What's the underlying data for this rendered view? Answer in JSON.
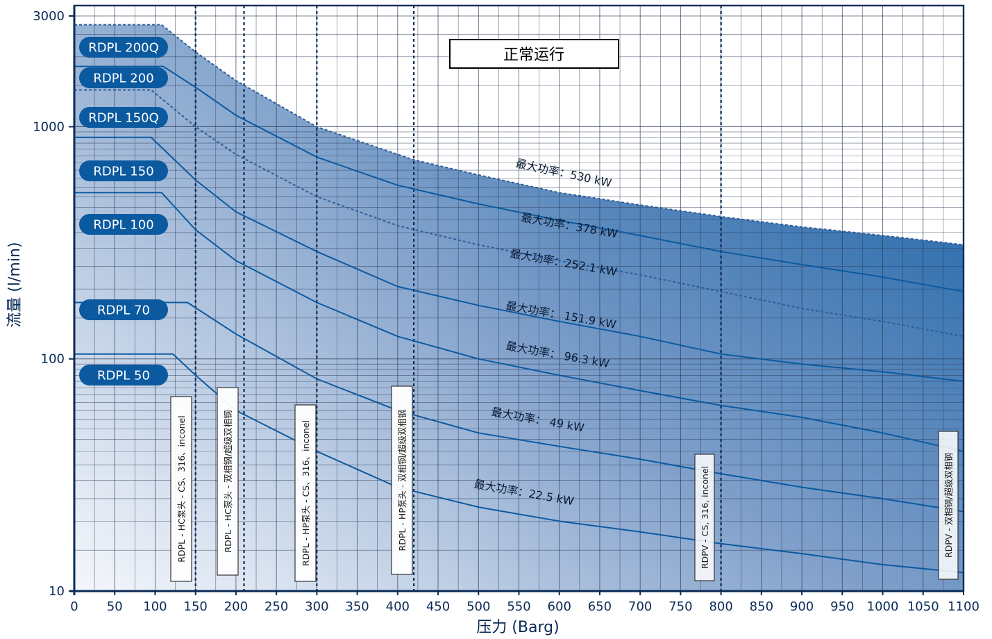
{
  "chart_data": {
    "type": "line",
    "title": "",
    "badge": "正常运行",
    "xlabel": "压力 (Barg)",
    "ylabel": "流量 (l/min)",
    "x_scale": "linear",
    "y_scale": "log",
    "xlim": [
      0,
      1100
    ],
    "ylim": [
      10,
      3000
    ],
    "x_ticks": [
      0,
      50,
      100,
      150,
      200,
      250,
      300,
      350,
      400,
      450,
      500,
      550,
      600,
      650,
      700,
      750,
      800,
      850,
      900,
      950,
      1000,
      1050,
      1100
    ],
    "y_ticks": [
      {
        "value": 10,
        "label": "10"
      },
      {
        "value": 100,
        "label": "100"
      },
      {
        "value": 1000,
        "label": "1000"
      },
      {
        "value": 3000,
        "label": "3000"
      }
    ],
    "grid": true,
    "series": [
      {
        "name": "RDPL 200Q",
        "power_label": "最大功率：530 kW",
        "dashed": true,
        "points": [
          [
            0,
            2750
          ],
          [
            108,
            2750
          ],
          [
            150,
            2100
          ],
          [
            200,
            1580
          ],
          [
            300,
            1000
          ],
          [
            420,
            720
          ],
          [
            500,
            620
          ],
          [
            600,
            520
          ],
          [
            700,
            460
          ],
          [
            800,
            410
          ],
          [
            900,
            370
          ],
          [
            1000,
            340
          ],
          [
            1100,
            310
          ]
        ]
      },
      {
        "name": "RDPL 200",
        "power_label": "最大功率：378 kW",
        "dashed": false,
        "points": [
          [
            0,
            1820
          ],
          [
            110,
            1820
          ],
          [
            150,
            1480
          ],
          [
            200,
            1120
          ],
          [
            300,
            740
          ],
          [
            400,
            560
          ],
          [
            500,
            465
          ],
          [
            600,
            395
          ],
          [
            700,
            340
          ],
          [
            800,
            290
          ],
          [
            900,
            255
          ],
          [
            1000,
            225
          ],
          [
            1100,
            195
          ]
        ]
      },
      {
        "name": "RDPL 150Q",
        "power_label": "最大功率：252.1 kW",
        "dashed": true,
        "points": [
          [
            0,
            1440
          ],
          [
            95,
            1440
          ],
          [
            150,
            1000
          ],
          [
            200,
            760
          ],
          [
            300,
            500
          ],
          [
            400,
            375
          ],
          [
            500,
            310
          ],
          [
            600,
            265
          ],
          [
            700,
            230
          ],
          [
            800,
            195
          ],
          [
            900,
            165
          ],
          [
            1000,
            145
          ],
          [
            1100,
            125
          ]
        ]
      },
      {
        "name": "RDPL 150",
        "power_label": "最大功率： 151.9 kW",
        "dashed": false,
        "points": [
          [
            0,
            900
          ],
          [
            95,
            900
          ],
          [
            150,
            590
          ],
          [
            200,
            430
          ],
          [
            300,
            290
          ],
          [
            400,
            205
          ],
          [
            500,
            170
          ],
          [
            600,
            145
          ],
          [
            700,
            125
          ],
          [
            800,
            105
          ],
          [
            900,
            95
          ],
          [
            1000,
            88
          ],
          [
            1100,
            80
          ]
        ]
      },
      {
        "name": "RDPL 100",
        "power_label": "最大功率： 96.3 kW",
        "dashed": false,
        "points": [
          [
            0,
            520
          ],
          [
            108,
            520
          ],
          [
            150,
            360
          ],
          [
            200,
            265
          ],
          [
            300,
            175
          ],
          [
            400,
            125
          ],
          [
            500,
            100
          ],
          [
            600,
            85
          ],
          [
            700,
            73
          ],
          [
            800,
            63
          ],
          [
            900,
            56
          ],
          [
            1000,
            48
          ],
          [
            1100,
            40
          ]
        ]
      },
      {
        "name": "RDPL 70",
        "power_label": "最大功率：  49 kW",
        "dashed": false,
        "points": [
          [
            0,
            175
          ],
          [
            140,
            175
          ],
          [
            200,
            128
          ],
          [
            300,
            82
          ],
          [
            400,
            60
          ],
          [
            500,
            48
          ],
          [
            600,
            42
          ],
          [
            700,
            37
          ],
          [
            800,
            32
          ],
          [
            900,
            28
          ],
          [
            1000,
            25
          ],
          [
            1100,
            22
          ]
        ]
      },
      {
        "name": "RDPL 50",
        "power_label": "最大功率：22.5 kW",
        "dashed": false,
        "points": [
          [
            0,
            105
          ],
          [
            122,
            105
          ],
          [
            150,
            85
          ],
          [
            200,
            60
          ],
          [
            300,
            40
          ],
          [
            400,
            28
          ],
          [
            500,
            23
          ],
          [
            600,
            20
          ],
          [
            700,
            18
          ],
          [
            800,
            16
          ],
          [
            900,
            14.5
          ],
          [
            1000,
            13
          ],
          [
            1100,
            12
          ]
        ]
      }
    ],
    "vertical_markers": [
      {
        "x": 150,
        "label": "RDPL - HC泵头 - CS、316、inconel"
      },
      {
        "x": 210,
        "label": "RDPL - HC泵头 - 双相钢/超级双相钢"
      },
      {
        "x": 300,
        "label": "RDPL - HP泵头 - CS、316、inconel"
      },
      {
        "x": 420,
        "label": "RDPL - HP泵头 - 双相钢/超级双相钢"
      },
      {
        "x": 800,
        "label": "RDPV - CS, 316, inconel"
      },
      {
        "x": 1100,
        "label": "RDPV - 双相钢/超级双相钢"
      }
    ]
  },
  "colors": {
    "line": "#0b5aa0",
    "pill": "#0b5aa0",
    "text": "#0a2a55",
    "grid": "#2a3a55",
    "fill_light": "#dfe7f3",
    "fill_dark": "#0058a0"
  }
}
